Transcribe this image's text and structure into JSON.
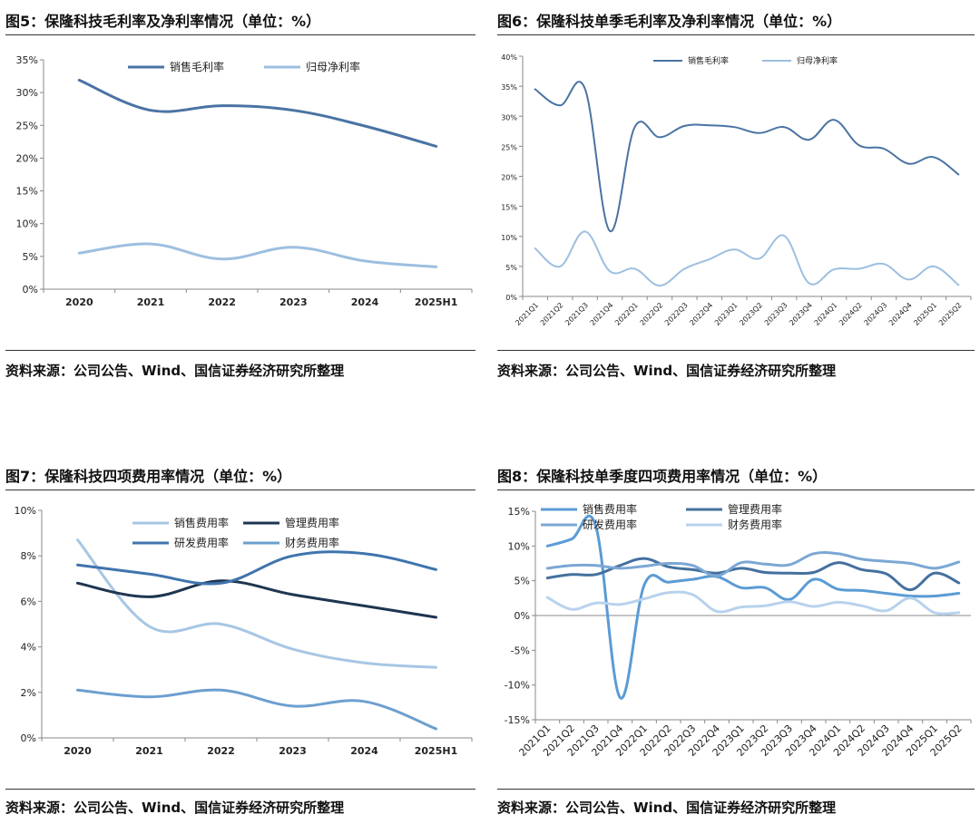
{
  "charts": [
    {
      "title": "图5：保隆科技毛利率及净利率情况（单位：%）",
      "source": "资料来源：公司公告、Wind、国信证券经济研究所整理"
    },
    {
      "title": "图6：保隆科技单季毛利率及净利率情况（单位：%）",
      "source": "资料来源：公司公告、Wind、国信证券经济研究所整理"
    },
    {
      "title": "图7：保隆科技四项费用率情况（单位：%）",
      "source": "资料来源：公司公告、Wind、国信证券经济研究所整理"
    },
    {
      "title": "图8：保隆科技单季度四项费用率情况（单位：%）",
      "source": "资料来源：公司公告、Wind、国信证券经济研究所整理"
    }
  ],
  "chart_data": [
    {
      "type": "line",
      "title": "图5：保隆科技毛利率及净利率情况（单位：%）",
      "categories": [
        "2020",
        "2021",
        "2022",
        "2023",
        "2024",
        "2025H1"
      ],
      "ylim": [
        0,
        35
      ],
      "yticks": [
        0,
        5,
        10,
        15,
        20,
        25,
        30,
        35
      ],
      "ytick_suffix": "%",
      "legend_position": "top-center",
      "series": [
        {
          "name": "销售毛利率",
          "color": "#4a73a3",
          "values": [
            31.9,
            27.3,
            28.0,
            27.3,
            24.9,
            21.8
          ]
        },
        {
          "name": "归母净利率",
          "color": "#9dbfe0",
          "values": [
            5.5,
            6.9,
            4.6,
            6.4,
            4.3,
            3.4
          ]
        }
      ]
    },
    {
      "type": "line",
      "title": "图6：保隆科技单季毛利率及净利率情况（单位：%）",
      "categories": [
        "2021Q1",
        "2021Q2",
        "2021Q3",
        "2021Q4",
        "2022Q1",
        "2022Q2",
        "2022Q3",
        "2022Q4",
        "2023Q1",
        "2023Q2",
        "2023Q3",
        "2023Q4",
        "2024Q1",
        "2024Q2",
        "2024Q3",
        "2024Q4",
        "2025Q1",
        "2025Q2"
      ],
      "ylim": [
        0,
        40
      ],
      "yticks": [
        0,
        5,
        10,
        15,
        20,
        25,
        30,
        35,
        40
      ],
      "ytick_suffix": "%",
      "legend_position": "top-center",
      "series": [
        {
          "name": "销售毛利率",
          "color": "#4a73a3",
          "values": [
            34.5,
            31.8,
            34.6,
            10.9,
            28.2,
            26.5,
            28.4,
            28.5,
            28.2,
            27.2,
            28.2,
            26.1,
            29.4,
            25.2,
            24.6,
            22.1,
            23.2,
            20.3
          ]
        },
        {
          "name": "归母净利率",
          "color": "#9dbfe0",
          "values": [
            8.0,
            5.0,
            10.8,
            4.2,
            4.6,
            1.8,
            4.6,
            6.2,
            7.8,
            6.3,
            10.1,
            2.2,
            4.5,
            4.6,
            5.4,
            2.8,
            5.0,
            1.9
          ]
        }
      ]
    },
    {
      "type": "line",
      "title": "图7：保隆科技四项费用率情况（单位：%）",
      "categories": [
        "2020",
        "2021",
        "2022",
        "2023",
        "2024",
        "2025H1"
      ],
      "ylim": [
        0,
        10
      ],
      "yticks": [
        0,
        2,
        4,
        6,
        8,
        10
      ],
      "ytick_suffix": "%",
      "legend_position": "top-center",
      "series": [
        {
          "name": "销售费用率",
          "color": "#a7c6e4",
          "values": [
            8.7,
            4.9,
            5.0,
            3.9,
            3.3,
            3.1
          ]
        },
        {
          "name": "管理费用率",
          "color": "#1e3550",
          "values": [
            6.8,
            6.2,
            6.9,
            6.3,
            5.8,
            5.3
          ]
        },
        {
          "name": "研发费用率",
          "color": "#3f74ad",
          "values": [
            7.6,
            7.2,
            6.8,
            8.0,
            8.1,
            7.4
          ]
        },
        {
          "name": "财务费用率",
          "color": "#6c9fd0",
          "values": [
            2.1,
            1.8,
            2.1,
            1.4,
            1.6,
            0.4
          ]
        }
      ]
    },
    {
      "type": "line",
      "title": "图8：保隆科技单季度四项费用率情况（单位：%）",
      "categories": [
        "2021Q1",
        "2021Q2",
        "2021Q3",
        "2021Q4",
        "2022Q1",
        "2022Q2",
        "2022Q3",
        "2022Q4",
        "2023Q1",
        "2023Q2",
        "2023Q3",
        "2023Q4",
        "2024Q1",
        "2024Q2",
        "2024Q3",
        "2024Q4",
        "2025Q1",
        "2025Q2"
      ],
      "ylim": [
        -15,
        15
      ],
      "yticks": [
        -15,
        -10,
        -5,
        0,
        5,
        10,
        15
      ],
      "ytick_suffix": "%",
      "legend_position": "top-center",
      "series": [
        {
          "name": "销售费用率",
          "color": "#5b9bd5",
          "values": [
            10.0,
            11.0,
            12.8,
            -11.8,
            4.4,
            4.8,
            5.2,
            5.6,
            4.0,
            4.0,
            2.3,
            5.2,
            3.8,
            3.6,
            3.2,
            2.8,
            2.8,
            3.2
          ]
        },
        {
          "name": "管理费用率",
          "color": "#44709e",
          "values": [
            5.4,
            5.9,
            5.9,
            7.2,
            8.2,
            7.0,
            6.6,
            6.1,
            6.8,
            6.2,
            6.1,
            6.2,
            7.6,
            6.6,
            6.0,
            3.7,
            6.1,
            4.7
          ]
        },
        {
          "name": "研发费用率",
          "color": "#7ba7d4",
          "values": [
            6.8,
            7.2,
            7.2,
            6.8,
            7.1,
            7.5,
            7.2,
            5.7,
            7.6,
            7.4,
            7.3,
            8.9,
            8.9,
            8.1,
            7.8,
            7.5,
            6.8,
            7.7
          ]
        },
        {
          "name": "财务费用率",
          "color": "#b7d2ec",
          "values": [
            2.6,
            0.9,
            1.8,
            1.6,
            2.4,
            3.3,
            3.0,
            0.6,
            1.2,
            1.4,
            2.0,
            1.3,
            1.9,
            1.4,
            0.7,
            2.5,
            0.4,
            0.4
          ]
        }
      ]
    }
  ]
}
